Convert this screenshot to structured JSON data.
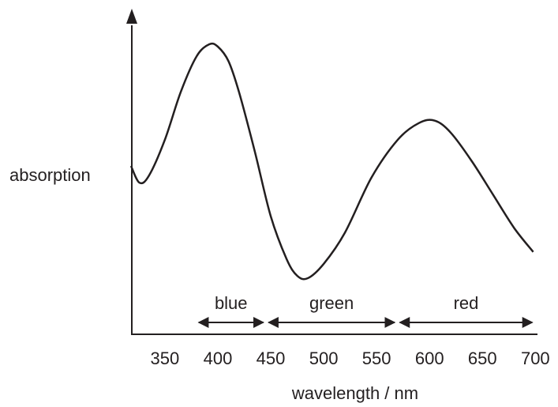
{
  "chart_data": {
    "type": "line",
    "title": "",
    "xlabel": "wavelength / nm",
    "ylabel": "absorption",
    "xlim": [
      318,
      702
    ],
    "ylim": [
      0,
      1
    ],
    "x_ticks": [
      350,
      400,
      450,
      500,
      550,
      600,
      650,
      700
    ],
    "x_tick_labels": [
      "350",
      "400",
      "450",
      "500",
      "550",
      "600",
      "650",
      "700"
    ],
    "y_ticks": [],
    "grid": false,
    "series": [
      {
        "x": [
          318,
          326,
          335,
          350,
          365,
          380,
          392,
          400,
          410,
          420,
          435,
          450,
          465,
          475,
          485,
          500,
          520,
          545,
          570,
          590,
          605,
          620,
          640,
          660,
          680,
          698
        ],
        "y": [
          0.48,
          0.41,
          0.44,
          0.59,
          0.79,
          0.94,
          0.99,
          0.98,
          0.92,
          0.79,
          0.54,
          0.27,
          0.09,
          0.02,
          0.01,
          0.07,
          0.2,
          0.43,
          0.59,
          0.66,
          0.67,
          0.62,
          0.5,
          0.36,
          0.22,
          0.12
        ]
      }
    ],
    "bands": [
      {
        "label": "blue",
        "x_start": 382,
        "x_end": 443
      },
      {
        "label": "green",
        "x_start": 448,
        "x_end": 567
      },
      {
        "label": "red",
        "x_start": 572,
        "x_end": 697
      }
    ]
  },
  "colors": {
    "ink": "#231f20",
    "background": "#ffffff"
  }
}
